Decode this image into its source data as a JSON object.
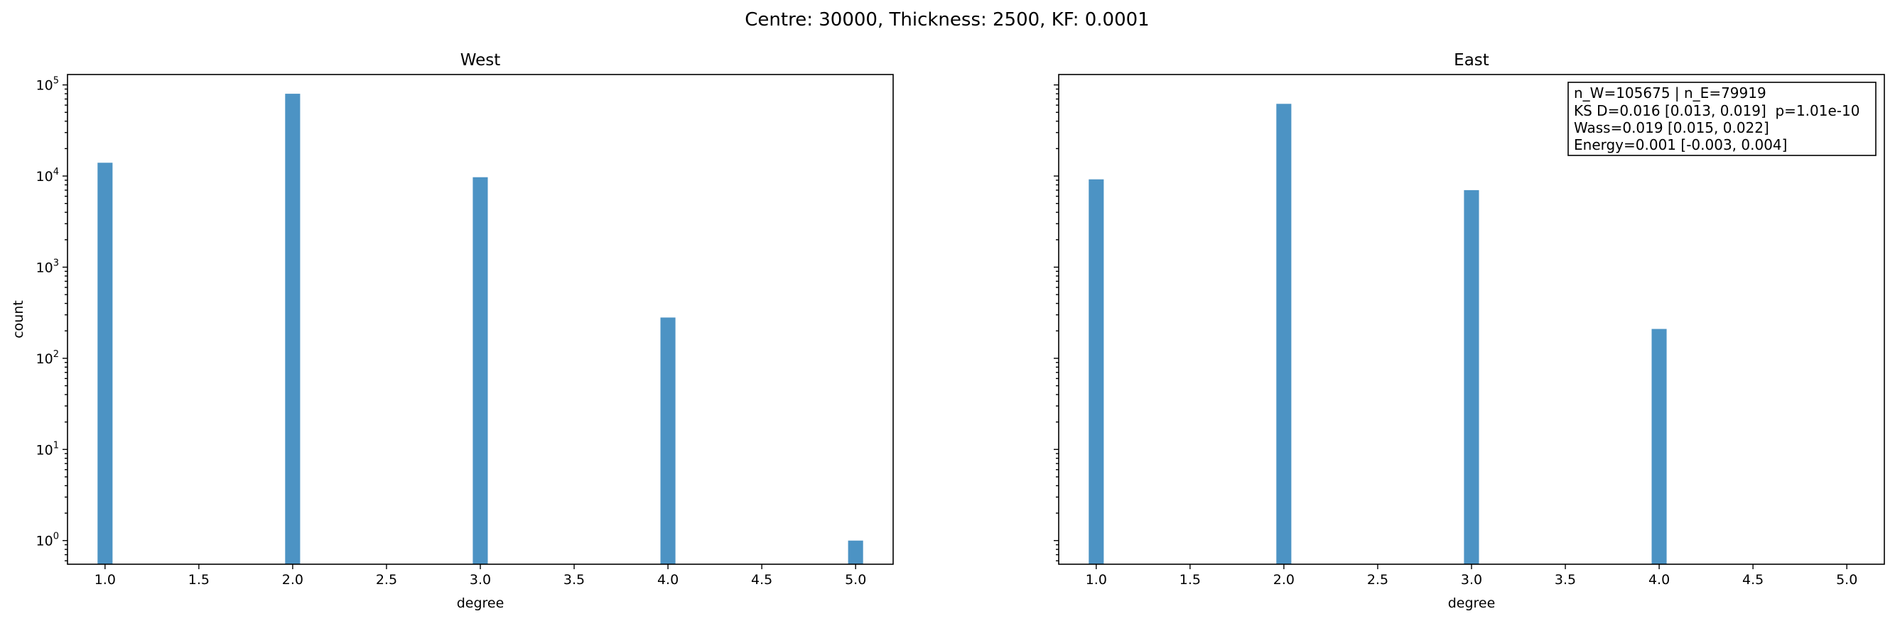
{
  "figure": {
    "suptitle": "Centre: 30000, Thickness: 2500, KF: 0.0001"
  },
  "chart_data": [
    {
      "type": "bar",
      "title": "West",
      "xlabel": "degree",
      "ylabel": "count",
      "yscale": "log",
      "xlim": [
        0.8,
        5.2
      ],
      "ylim": [
        0.55,
        130000
      ],
      "xticks": [
        "1.0",
        "1.5",
        "2.0",
        "2.5",
        "3.0",
        "3.5",
        "4.0",
        "4.5",
        "5.0"
      ],
      "yticks": [
        {
          "base": "10",
          "exp": "0"
        },
        {
          "base": "10",
          "exp": "1"
        },
        {
          "base": "10",
          "exp": "2"
        },
        {
          "base": "10",
          "exp": "3"
        },
        {
          "base": "10",
          "exp": "4"
        },
        {
          "base": "10",
          "exp": "5"
        }
      ],
      "bar_width": 0.08,
      "x": [
        1,
        2,
        3,
        4,
        5
      ],
      "values": [
        14000,
        80000,
        9700,
        280,
        1
      ],
      "color": "#4c93c4",
      "grid": false
    },
    {
      "type": "bar",
      "title": "East",
      "xlabel": "degree",
      "ylabel": "",
      "yscale": "log",
      "xlim": [
        0.8,
        5.2
      ],
      "ylim": [
        0.55,
        130000
      ],
      "xticks": [
        "1.0",
        "1.5",
        "2.0",
        "2.5",
        "3.0",
        "3.5",
        "4.0",
        "4.5",
        "5.0"
      ],
      "yticks": [],
      "bar_width": 0.08,
      "x": [
        1,
        2,
        3,
        4
      ],
      "values": [
        9200,
        62000,
        7000,
        210
      ],
      "color": "#4c93c4",
      "grid": false,
      "annotation": {
        "placement": "top-right",
        "lines": [
          "n_W=105675 | n_E=79919",
          "KS D=0.016 [0.013, 0.019]  p=1.01e-10",
          "Wass=0.019 [0.015, 0.022]",
          "Energy=0.001 [-0.003, 0.004]"
        ]
      }
    }
  ]
}
